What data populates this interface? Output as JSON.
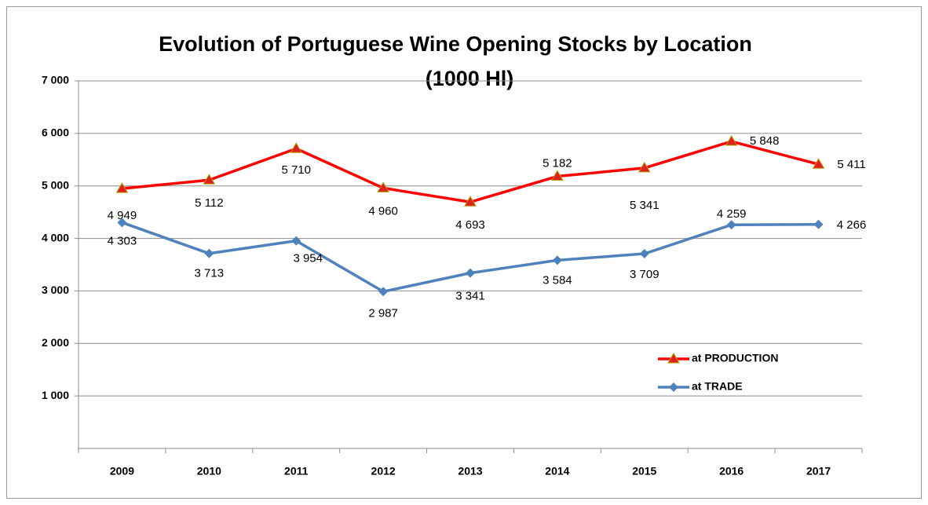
{
  "chart_data": {
    "type": "line",
    "title": [
      "Evolution of Portuguese Wine Opening Stocks by Location",
      "(1000 Hl)"
    ],
    "categories": [
      "2009",
      "2010",
      "2011",
      "2012",
      "2013",
      "2014",
      "2015",
      "2016",
      "2017"
    ],
    "series": [
      {
        "name": "at PRODUCTION",
        "color": "#ff0000",
        "marker": "triangle",
        "values": [
          4949,
          5112,
          5710,
          4960,
          4693,
          5182,
          5341,
          5848,
          5411
        ],
        "value_labels": [
          "4 949",
          "5 112",
          "5 710",
          "4 960",
          "4 693",
          "5 182",
          "5 341",
          "5 848",
          "5 411"
        ]
      },
      {
        "name": "at TRADE",
        "color": "#4f81bd",
        "marker": "diamond",
        "values": [
          4303,
          3713,
          3954,
          2987,
          3341,
          3584,
          3709,
          4259,
          4266
        ],
        "value_labels": [
          "4 303",
          "3 713",
          "3 954",
          "2 987",
          "3 341",
          "3 584",
          "3 709",
          "4 259",
          "4 266"
        ]
      }
    ],
    "ylim": [
      0,
      7000
    ],
    "yticks": [
      {
        "value": 1000,
        "label": "1 000"
      },
      {
        "value": 2000,
        "label": "2 000"
      },
      {
        "value": 3000,
        "label": "3 000"
      },
      {
        "value": 4000,
        "label": "4 000"
      },
      {
        "value": 5000,
        "label": "5 000"
      },
      {
        "value": 6000,
        "label": "6 000"
      },
      {
        "value": 7000,
        "label": "7 000"
      }
    ],
    "grid": true,
    "legend": "lower right"
  }
}
